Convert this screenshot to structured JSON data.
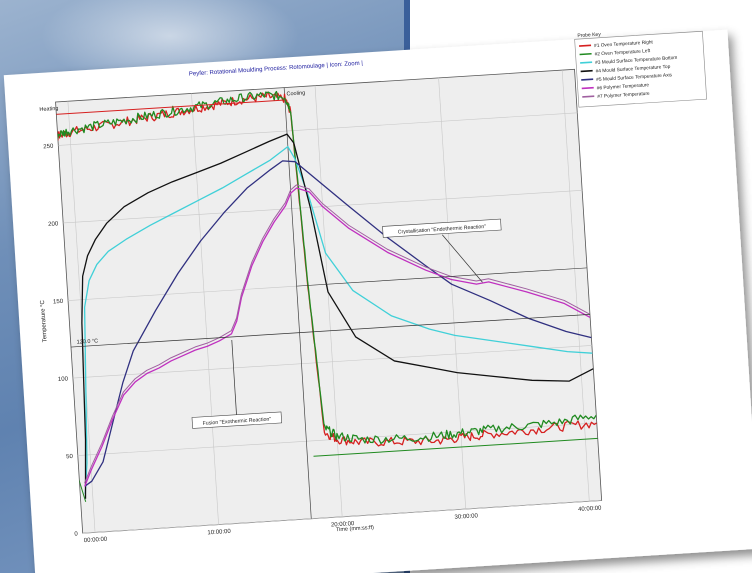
{
  "chart_data": {
    "type": "line",
    "title": "Peyfer: Rotational Moulding Process: Rotomoulage | Icon: Zoom |",
    "xlabel": "Time (mm:ss:ff)",
    "ylabel": "Temperature °C",
    "xlim": [
      -1,
      41
    ],
    "ylim": [
      0,
      278
    ],
    "x_ticks": [
      {
        "v": 0,
        "label": "00:00:00"
      },
      {
        "v": 10,
        "label": "10:00:00"
      },
      {
        "v": 20,
        "label": "20:00:00"
      },
      {
        "v": 30,
        "label": "30:00:00"
      },
      {
        "v": 40,
        "label": "40:00:00"
      }
    ],
    "y_ticks": [
      {
        "v": 0,
        "label": "0"
      },
      {
        "v": 50,
        "label": "50"
      },
      {
        "v": 100,
        "label": "100"
      },
      {
        "v": 150,
        "label": "150"
      },
      {
        "v": 200,
        "label": "200"
      },
      {
        "v": 250,
        "label": "250"
      }
    ],
    "phase_labels": [
      {
        "x": -2.5,
        "label": "Heating"
      },
      {
        "x": 17.5,
        "label": "Cooling"
      }
    ],
    "reference_line": {
      "y": 120,
      "label": "120.0 °C"
    },
    "crystallisation_line": {
      "y": 150
    },
    "annotations": [
      {
        "label": "Crystallisation \"Endothermic Reaction\"",
        "x": 29.5,
        "y": 181,
        "target": [
          32.5,
          145
        ]
      },
      {
        "label": "Fusion \"Exothermic Reaction\"",
        "x": 12,
        "y": 66,
        "target": [
          12,
          118
        ]
      }
    ],
    "legend": {
      "title": "Probe Key",
      "position": "top-right",
      "entries": [
        {
          "label": "#1 Oven Temperature Right",
          "color": "#d62020"
        },
        {
          "label": "#2 Oven Temperature Left",
          "color": "#208a20"
        },
        {
          "label": "#3 Mould Surface Temperature Bottom",
          "color": "#40d0d8"
        },
        {
          "label": "#4 Mould Surface Temperature Top",
          "color": "#111111"
        },
        {
          "label": "#5 Mould Surface Temperature Axis",
          "color": "#303080"
        },
        {
          "label": "#6 Polymer Temperature",
          "color": "#c030c0"
        },
        {
          "label": "#7 Polymer Temperature",
          "color": "#a060a0"
        }
      ]
    },
    "series": [
      {
        "name": "#1 Oven Temperature Right",
        "color": "#d62020",
        "noise": 3,
        "x": [
          -2.8,
          -2.2,
          -1.8,
          -1,
          0,
          2,
          4,
          6,
          8,
          10,
          12,
          14,
          16,
          17.5,
          17.9,
          18.4,
          19,
          20,
          22,
          25,
          28,
          30,
          32,
          35,
          38,
          41
        ],
        "y": [
          245,
          249,
          252,
          256,
          258,
          260,
          262,
          264,
          266,
          268,
          270,
          272,
          273,
          271,
          262,
          150,
          55,
          50,
          47,
          46,
          45,
          46,
          47,
          48,
          49,
          50
        ]
      },
      {
        "name": "#2 Oven Temperature Left",
        "color": "#208a20",
        "noise": 3,
        "x": [
          -2.8,
          -2.2,
          -1.8,
          -1,
          0,
          2,
          4,
          6,
          8,
          10,
          12,
          14,
          16,
          17.5,
          17.9,
          18.4,
          19,
          20,
          22,
          25,
          28,
          30,
          32,
          35,
          38,
          41
        ],
        "y": [
          246,
          250,
          253,
          257,
          259,
          261,
          263,
          265,
          267,
          269,
          271,
          273,
          274,
          272,
          264,
          155,
          58,
          52,
          49,
          48,
          48,
          49,
          50,
          51,
          52,
          55
        ]
      },
      {
        "name": "Oven setpoint (heating)",
        "color": "#d62020",
        "noise": 0,
        "width": 1,
        "x": [
          -2.5,
          17.5
        ],
        "y": [
          270,
          270
        ]
      },
      {
        "name": "Oven setpoint (cooling)",
        "color": "#208a20",
        "noise": 0,
        "width": 1,
        "x": [
          18,
          41
        ],
        "y": [
          40,
          40
        ]
      },
      {
        "name": "Oven drop",
        "color": "#208a20",
        "noise": 0,
        "width": 1,
        "x": [
          -2.5,
          -1.9,
          -1.2,
          -0.6
        ],
        "y": [
          260,
          140,
          40,
          20
        ]
      },
      {
        "name": "#3 Mould Surface Temperature Bottom",
        "color": "#40d0d8",
        "noise": 0,
        "x": [
          -0.6,
          -0.3,
          0,
          0.3,
          0.8,
          1.5,
          2.5,
          4,
          6,
          8,
          10,
          12,
          14,
          16,
          17.5,
          18,
          19,
          20,
          22,
          25,
          28,
          30,
          33,
          36,
          39,
          41
        ],
        "y": [
          25,
          45,
          95,
          145,
          162,
          172,
          180,
          187,
          195,
          202,
          209,
          216,
          224,
          232,
          240,
          232,
          205,
          170,
          145,
          127,
          117,
          112,
          107,
          102,
          97,
          95
        ]
      },
      {
        "name": "#4 Mould Surface Temperature Top",
        "color": "#111111",
        "noise": 0,
        "x": [
          -0.6,
          -0.3,
          0,
          0.3,
          0.8,
          1.5,
          2.5,
          4,
          6,
          8,
          10,
          12,
          14,
          16,
          17.5,
          18,
          19,
          20,
          22,
          25,
          28,
          30,
          33,
          36,
          39,
          41
        ],
        "y": [
          22,
          60,
          135,
          165,
          178,
          188,
          198,
          208,
          216,
          222,
          227,
          232,
          238,
          244,
          248,
          242,
          200,
          145,
          115,
          98,
          92,
          88,
          84,
          80,
          78,
          85
        ]
      },
      {
        "name": "#5 Mould Surface Temperature Axis",
        "color": "#303080",
        "noise": 0,
        "x": [
          -0.6,
          0,
          1,
          2,
          3,
          4,
          6,
          8,
          10,
          12,
          14,
          16,
          17,
          18,
          20,
          22,
          25,
          28,
          30,
          33,
          36,
          39,
          41
        ],
        "y": [
          30,
          33,
          45,
          70,
          95,
          115,
          140,
          163,
          183,
          200,
          215,
          226,
          231,
          230,
          215,
          200,
          178,
          158,
          145,
          133,
          120,
          110,
          105
        ]
      },
      {
        "name": "#6 Polymer Temperature",
        "color": "#c030c0",
        "noise": 0,
        "x": [
          -0.6,
          0,
          1,
          2,
          3,
          4,
          5,
          6,
          7,
          8,
          9,
          10,
          11,
          12,
          12.5,
          13,
          14,
          15,
          16,
          17,
          17.5,
          18,
          19,
          20,
          22,
          25,
          28,
          30,
          32,
          33,
          36,
          39,
          41
        ],
        "y": [
          30,
          40,
          55,
          72,
          87,
          95,
          100,
          103,
          107,
          110,
          113,
          115,
          118,
          122,
          130,
          145,
          165,
          180,
          192,
          202,
          210,
          213,
          210,
          200,
          185,
          168,
          155,
          148,
          144,
          145,
          137,
          128,
          118
        ]
      },
      {
        "name": "#7 Polymer Temperature",
        "color": "#a060a0",
        "noise": 0,
        "width": 1,
        "x": [
          -0.6,
          0,
          1,
          2,
          3,
          4,
          5,
          6,
          7,
          8,
          9,
          10,
          11,
          12,
          12.5,
          13,
          14,
          15,
          16,
          17,
          17.5,
          18,
          19,
          20,
          22,
          25,
          28,
          30,
          32,
          33,
          36,
          39,
          41
        ],
        "y": [
          32,
          42,
          57,
          74,
          89,
          97,
          102,
          105,
          109,
          112,
          115,
          117,
          120,
          124,
          132,
          147,
          167,
          182,
          194,
          204,
          212,
          215,
          212,
          202,
          187,
          170,
          157,
          150,
          146,
          147,
          139,
          130,
          120
        ]
      }
    ]
  }
}
